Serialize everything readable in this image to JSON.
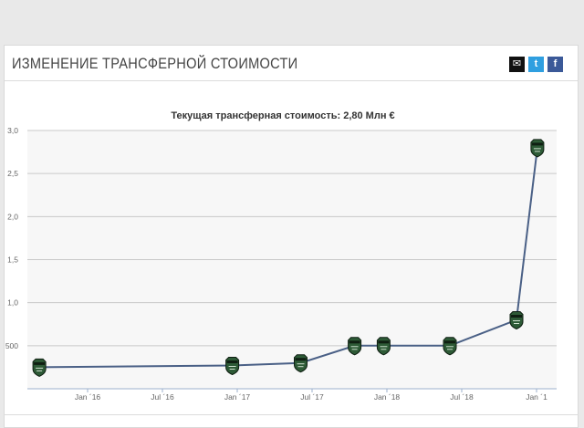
{
  "header": {
    "title": "ИЗМЕНЕНИЕ ТРАНСФЕРНОЙ СТОИМОСТИ",
    "share_icons": [
      "mail-icon",
      "twitter-icon",
      "facebook-icon"
    ]
  },
  "chart_data": {
    "type": "line",
    "title": "Текущая трансферная стоимость: 2,80 Млн €",
    "xlabel": "",
    "ylabel": "",
    "x_tick_labels": [
      "Jan ´16",
      "Jul ´16",
      "Jan ´17",
      "Jul ´17",
      "Jan ´18",
      "Jul ´18",
      "Jan ´1"
    ],
    "y_tick_labels": [
      "",
      "500",
      "1,0",
      "1,5",
      "2,0",
      "2,5",
      "3,0"
    ],
    "ylim": [
      0,
      3.0
    ],
    "grid": true,
    "line_color": "#4a6086",
    "marker": "club-crest-icon",
    "series": [
      {
        "x": [
          "2015-09-05",
          "2016-12-20",
          "2017-06-05",
          "2017-10-15",
          "2017-12-25",
          "2018-06-05",
          "2018-11-15",
          "2019-01-05"
        ],
        "values": [
          0.25,
          0.27,
          0.3,
          0.5,
          0.5,
          0.5,
          0.8,
          2.8
        ]
      }
    ]
  }
}
